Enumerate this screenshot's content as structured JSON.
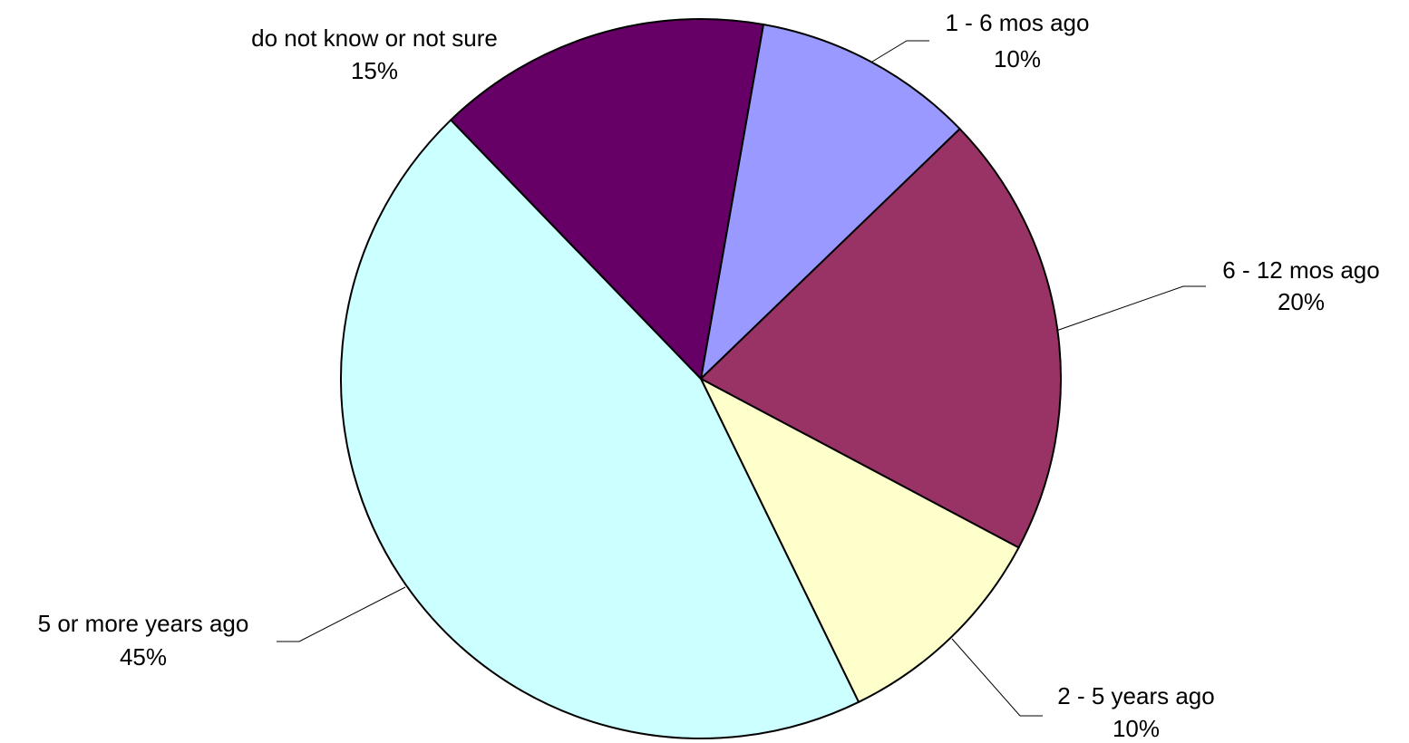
{
  "chart_data": {
    "type": "pie",
    "categories": [
      "1 - 6 mos ago",
      "6 - 12 mos ago",
      "2 - 5 years ago",
      "5 or more years ago",
      "do not know or not sure"
    ],
    "values": [
      10,
      20,
      10,
      45,
      15
    ],
    "value_labels": [
      "10%",
      "20%",
      "10%",
      "45%",
      "15%"
    ],
    "colors": [
      "#9999ff",
      "#993366",
      "#ffffcc",
      "#ccffff",
      "#660066"
    ],
    "start_angle": 10
  }
}
